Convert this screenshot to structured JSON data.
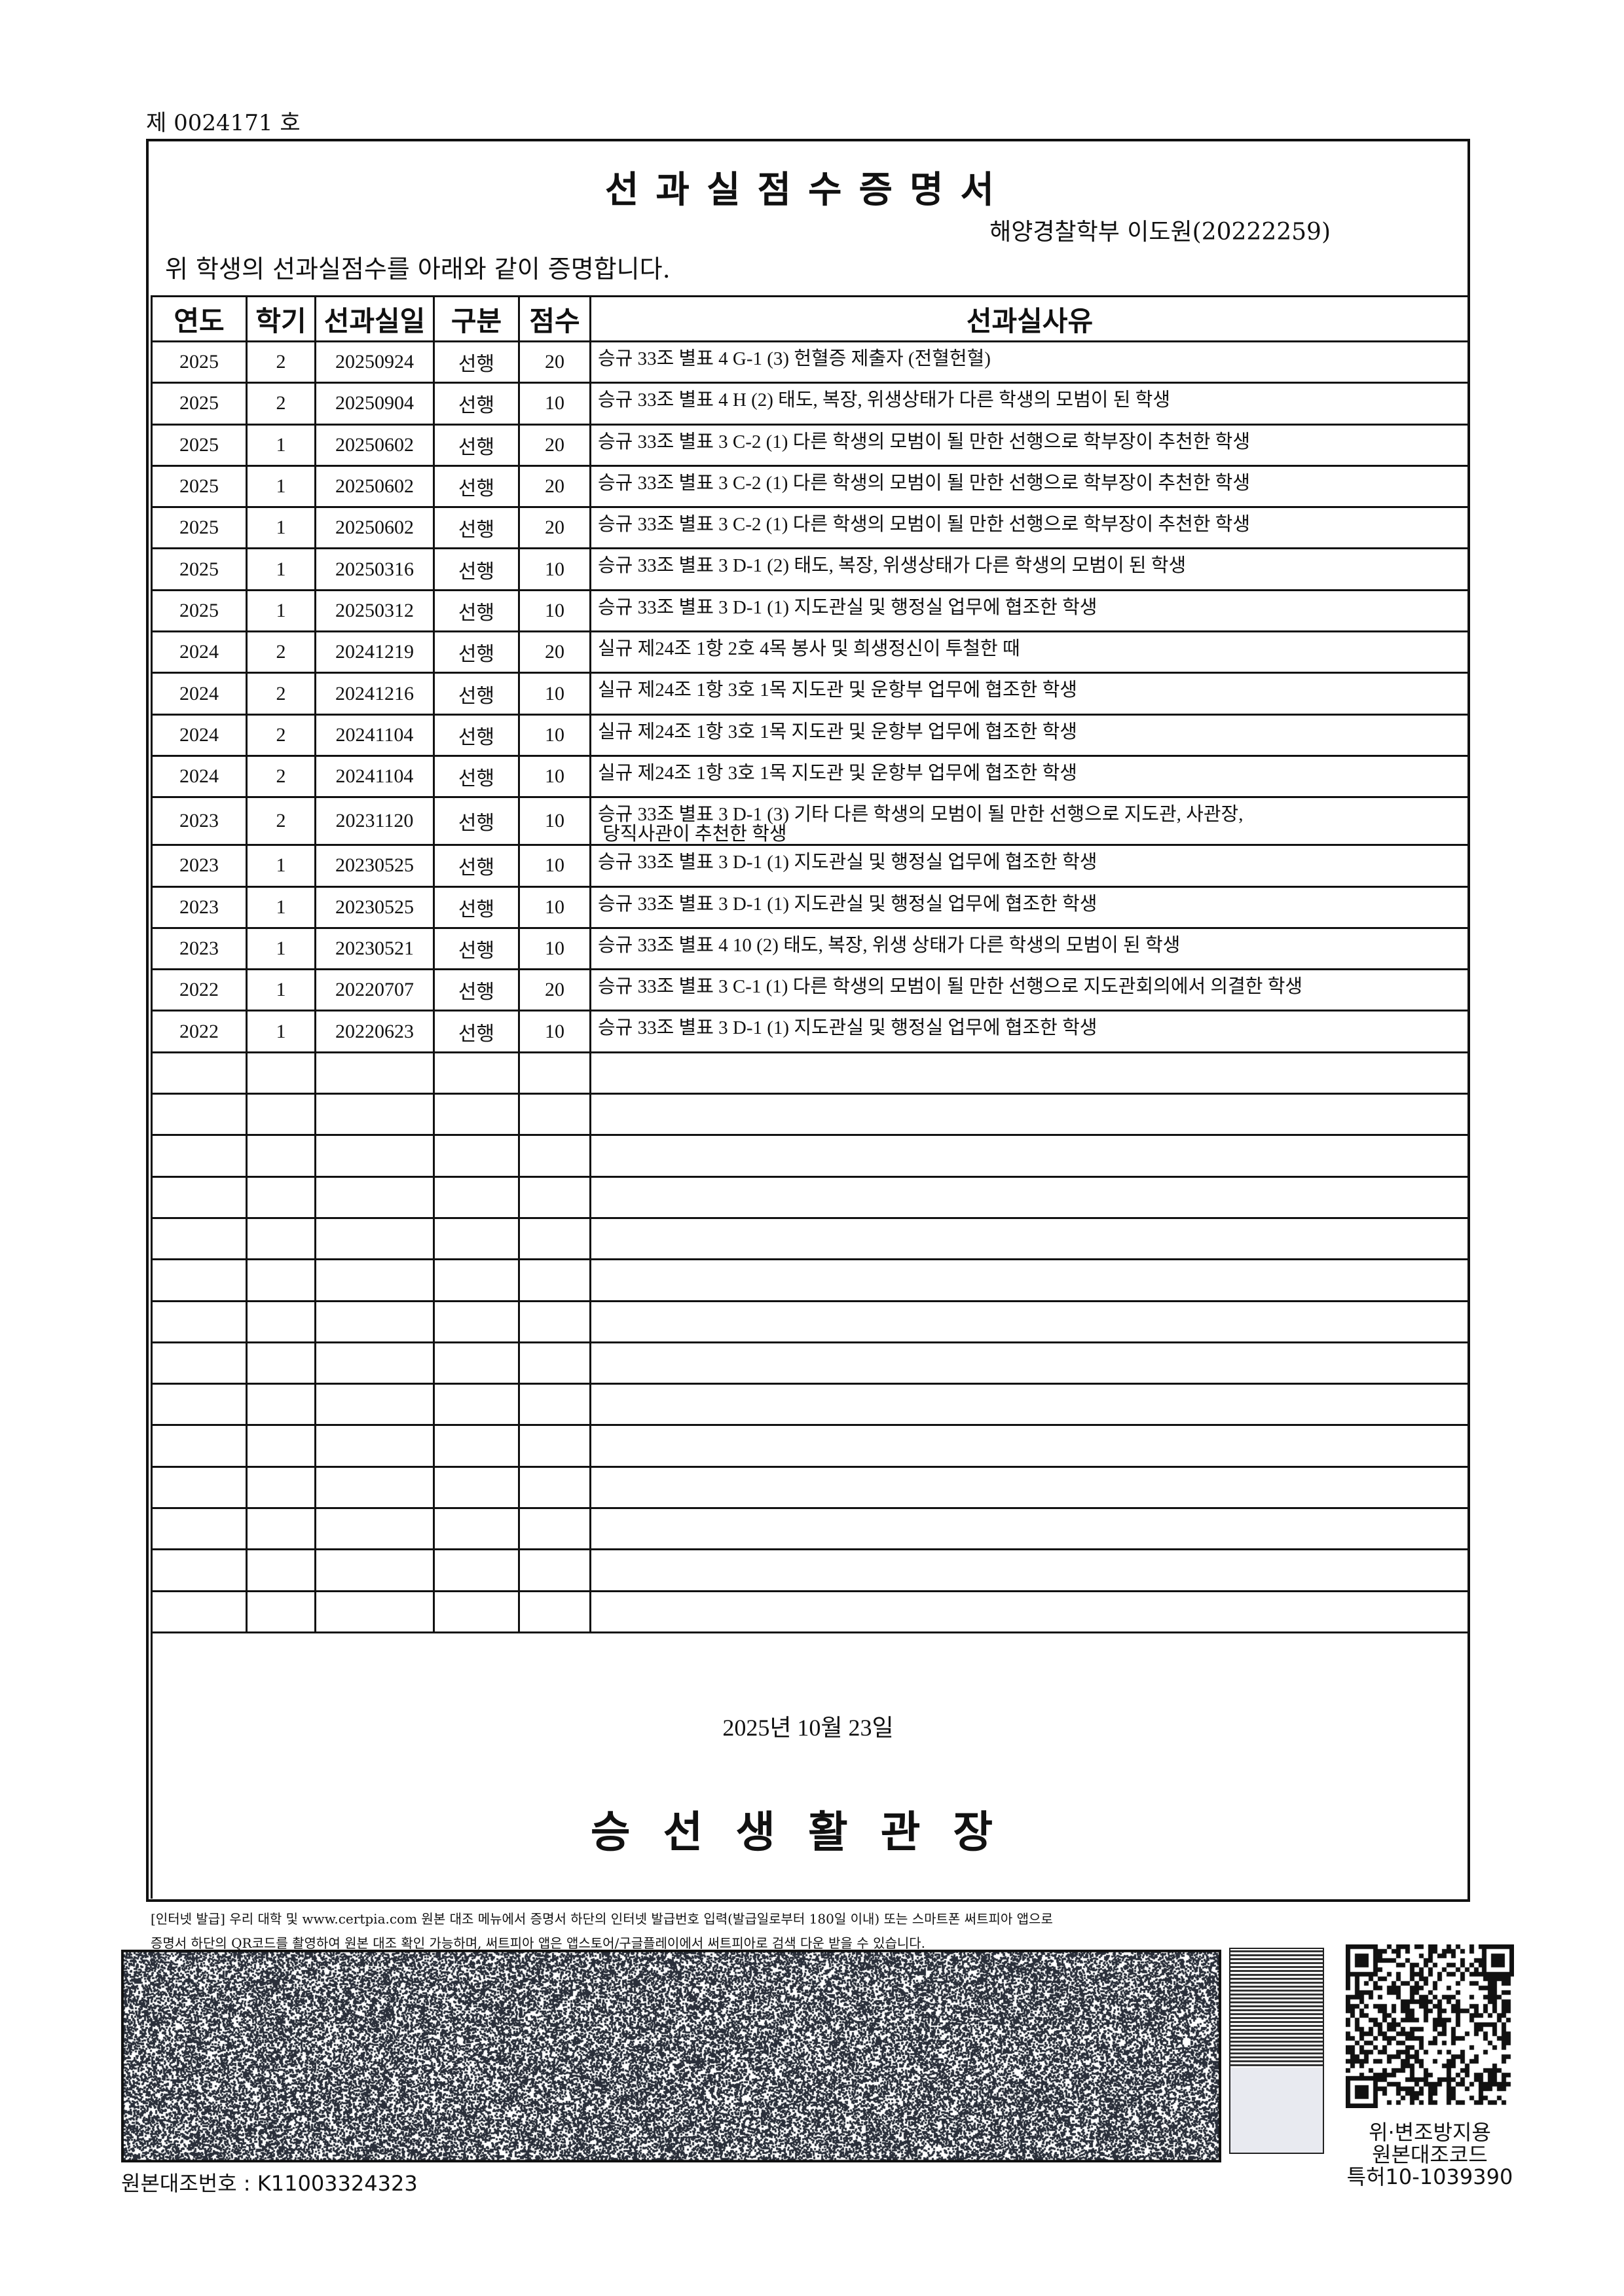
{
  "doc_number": "제 0024171 호",
  "title": "선과실점수증명서",
  "student": "해양경찰학부 이도원(20222259)",
  "intro": "위 학생의 선과실점수를 아래와 같이 증명합니다.",
  "table": {
    "headers": [
      "연도",
      "학기",
      "선과실일",
      "구분",
      "점수",
      "선과실사유"
    ],
    "rows": [
      [
        "2025",
        "2",
        "20250924",
        "선행",
        "20",
        "승규 33조 별표 4 G-1 (3) 헌혈증 제출자 (전혈헌혈)"
      ],
      [
        "2025",
        "2",
        "20250904",
        "선행",
        "10",
        "승규 33조 별표 4 H (2) 태도, 복장, 위생상태가 다른 학생의 모범이 된 학생"
      ],
      [
        "2025",
        "1",
        "20250602",
        "선행",
        "20",
        "승규 33조 별표 3 C-2 (1) 다른 학생의 모범이 될 만한 선행으로 학부장이 추천한 학생"
      ],
      [
        "2025",
        "1",
        "20250602",
        "선행",
        "20",
        "승규 33조 별표 3 C-2 (1) 다른 학생의 모범이 될 만한 선행으로 학부장이 추천한 학생"
      ],
      [
        "2025",
        "1",
        "20250602",
        "선행",
        "20",
        "승규 33조 별표 3 C-2 (1) 다른 학생의 모범이 될 만한 선행으로 학부장이 추천한 학생"
      ],
      [
        "2025",
        "1",
        "20250316",
        "선행",
        "10",
        "승규 33조 별표 3 D-1 (2) 태도, 복장, 위생상태가 다른 학생의 모범이 된 학생"
      ],
      [
        "2025",
        "1",
        "20250312",
        "선행",
        "10",
        "승규 33조 별표 3 D-1 (1) 지도관실 및 행정실 업무에 협조한 학생"
      ],
      [
        "2024",
        "2",
        "20241219",
        "선행",
        "20",
        "실규 제24조 1항 2호 4목 봉사 및 희생정신이 투철한 때"
      ],
      [
        "2024",
        "2",
        "20241216",
        "선행",
        "10",
        "실규 제24조 1항 3호 1목 지도관 및 운항부 업무에 협조한 학생"
      ],
      [
        "2024",
        "2",
        "20241104",
        "선행",
        "10",
        "실규 제24조 1항 3호 1목 지도관 및 운항부 업무에 협조한 학생"
      ],
      [
        "2024",
        "2",
        "20241104",
        "선행",
        "10",
        "실규 제24조 1항 3호 1목 지도관 및 운항부 업무에 협조한 학생"
      ],
      [
        "2023",
        "2",
        "20231120",
        "선행",
        "10",
        "승규 33조 별표 3 D-1 (3) 기타 다른 학생의 모범이 될 만한 선행으로 지도관, 사관장,\n 당직사관이 추천한 학생"
      ],
      [
        "2023",
        "1",
        "20230525",
        "선행",
        "10",
        "승규 33조 별표 3 D-1 (1) 지도관실 및 행정실 업무에 협조한 학생"
      ],
      [
        "2023",
        "1",
        "20230525",
        "선행",
        "10",
        "승규 33조 별표 3 D-1 (1) 지도관실 및 행정실 업무에 협조한 학생"
      ],
      [
        "2023",
        "1",
        "20230521",
        "선행",
        "10",
        "승규 33조 별표 4 10 (2) 태도, 복장, 위생 상태가 다른 학생의 모범이 된 학생"
      ],
      [
        "2022",
        "1",
        "20220707",
        "선행",
        "20",
        "승규 33조 별표 3 C-1 (1) 다른 학생의 모범이 될 만한 선행으로 지도관회의에서 의결한 학생"
      ],
      [
        "2022",
        "1",
        "20220623",
        "선행",
        "10",
        "승규 33조 별표 3 D-1 (1) 지도관실 및 행정실 업무에 협조한 학생"
      ]
    ]
  },
  "issue_date": "2025년 10월 23일",
  "issuer": "승선생활관장",
  "footer": {
    "note_line1": "[인터넷 발급] 우리 대학 및 www.certpia.com 원본 대조 메뉴에서 증명서 하단의 인터넷 발급번호 입력(발급일로부터 180일 이내) 또는 스마트폰 써트피아 앱으로",
    "note_line2": "증명서 하단의 QR코드를 촬영하여 원본 대조 확인 가능하며, 써트피아 앱은 앱스토어/구글플레이에서 써트피아로 검색 다운 받을 수 있습니다.",
    "qr_label1": "위·변조방지용",
    "qr_label2": "원본대조코드",
    "qr_label3": "특허10-1039390",
    "reference_number": "원본대조번호 : K11003324323"
  }
}
